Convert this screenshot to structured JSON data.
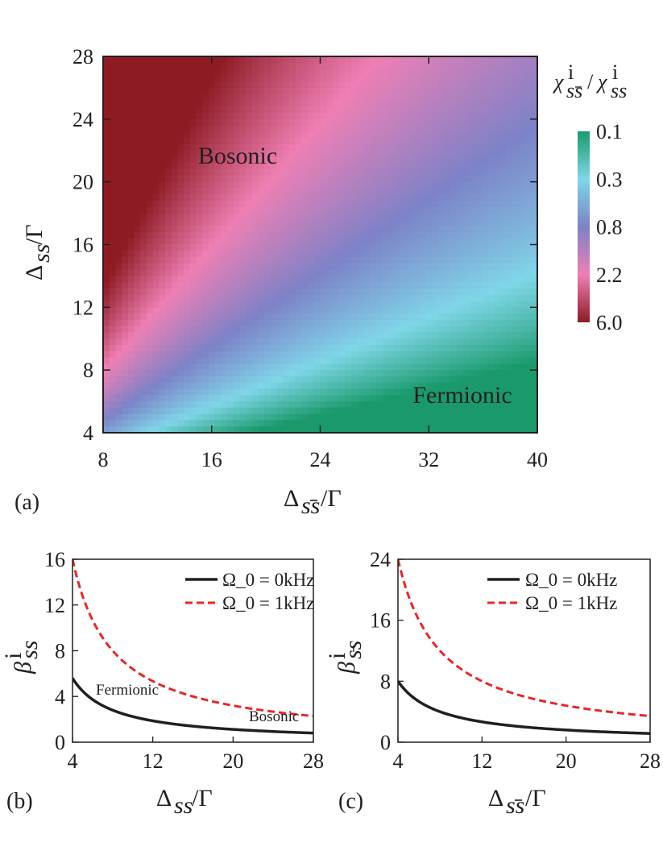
{
  "chart_data": [
    {
      "panel": "(a)",
      "type": "heatmap",
      "xlabel": "Δ_{s̅s}/Γ",
      "ylabel": "Δ_{ss}/Γ",
      "xlim": [
        8,
        40
      ],
      "ylim": [
        4,
        28
      ],
      "x_ticks": [
        "8",
        "16",
        "24",
        "32",
        "40"
      ],
      "y_ticks": [
        "4",
        "8",
        "12",
        "16",
        "20",
        "24",
        "28"
      ],
      "colorbar_title": "χ^i_{s̅s}/χ^i_{ss}",
      "colorbar_scale": "log",
      "colorbar_ticks": [
        "0.1",
        "0.3",
        "0.8",
        "2.2",
        "6.0"
      ],
      "colorbar_colors": [
        "#1a9a6b",
        "#7fd6e8",
        "#7d82c8",
        "#ef7fb4",
        "#8e1b24"
      ],
      "regions": [
        {
          "text": "Bosonic",
          "x": 17.5,
          "y": 21.3
        },
        {
          "text": "Fermionic",
          "x": 34,
          "y": 5.0
        }
      ],
      "value_function": "ratio ≈ (Δ_ss/Δ_s̅s)^2 × 2.2"
    },
    {
      "panel": "(b)",
      "type": "line",
      "xlabel": "Δ_{ss}/Γ",
      "ylabel": "β^i_{ss}",
      "xlim": [
        4,
        28
      ],
      "ylim": [
        0,
        16
      ],
      "x_ticks": [
        "4",
        "12",
        "20",
        "28"
      ],
      "y_ticks": [
        "0",
        "4",
        "8",
        "12",
        "16"
      ],
      "x": [
        4,
        6,
        8,
        10,
        12,
        14,
        16,
        18,
        20,
        22,
        24,
        26,
        28
      ],
      "series": [
        {
          "name": "Ω_0 = 0kHz",
          "style": "solid",
          "color": "#231f20",
          "values": [
            5.6,
            3.733,
            2.8,
            2.24,
            1.867,
            1.6,
            1.4,
            1.244,
            1.12,
            1.018,
            0.933,
            0.862,
            0.8
          ]
        },
        {
          "name": "Ω_0 = 1kHz",
          "style": "dashed",
          "color": "#e8262a",
          "values": [
            16.0,
            10.667,
            8.0,
            6.4,
            5.333,
            4.571,
            4.0,
            3.556,
            3.2,
            2.909,
            2.667,
            2.462,
            2.286
          ]
        }
      ],
      "annotations": [
        {
          "text": "Fermionic",
          "x": 9.5,
          "y": 3.7
        },
        {
          "text": "Bosonic",
          "x": 25.5,
          "y": 1.1
        }
      ],
      "legend_position": "top-right"
    },
    {
      "panel": "(c)",
      "type": "line",
      "xlabel": "Δ_{s̅s}/Γ",
      "ylabel": "β^i_{s̅s}",
      "xlim": [
        4,
        28
      ],
      "ylim": [
        0,
        24
      ],
      "x_ticks": [
        "4",
        "12",
        "20",
        "28"
      ],
      "y_ticks": [
        "0",
        "8",
        "16",
        "24"
      ],
      "x": [
        4,
        6,
        8,
        10,
        12,
        14,
        16,
        18,
        20,
        22,
        24,
        26,
        28
      ],
      "series": [
        {
          "name": "Ω_0 = 0kHz",
          "style": "solid",
          "color": "#231f20",
          "values": [
            8.0,
            5.333,
            4.0,
            3.2,
            2.667,
            2.286,
            2.0,
            1.778,
            1.6,
            1.455,
            1.333,
            1.231,
            1.143
          ]
        },
        {
          "name": "Ω_0 = 1kHz",
          "style": "dashed",
          "color": "#e8262a",
          "values": [
            24.0,
            16.0,
            12.0,
            9.6,
            8.0,
            6.857,
            6.0,
            5.333,
            4.8,
            4.364,
            4.0,
            3.692,
            3.429
          ]
        }
      ],
      "legend_position": "top-right"
    }
  ]
}
